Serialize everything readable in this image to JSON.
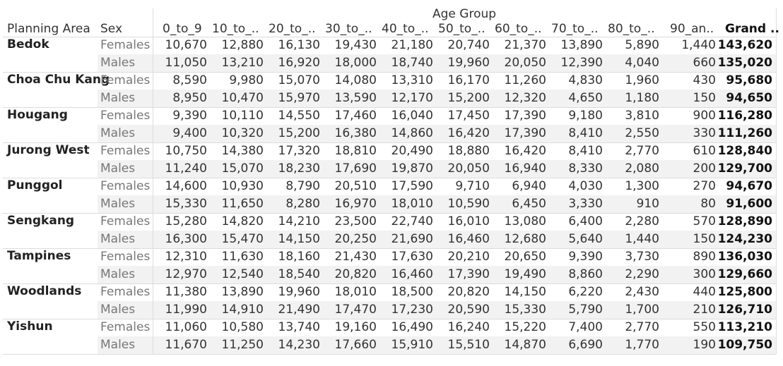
{
  "chart_data": {
    "type": "table",
    "column_group_label": "Age Group",
    "row_headers": [
      "Planning Area",
      "Sex"
    ],
    "columns": [
      "0_to_9",
      "10_to_..",
      "20_to_..",
      "30_to_..",
      "40_to_..",
      "50_to_..",
      "60_to_..",
      "70_to_..",
      "80_to_..",
      "90_an..",
      "Grand .."
    ],
    "rows": [
      {
        "area": "Bedok",
        "groups": [
          {
            "sex": "Females",
            "values": [
              "10,670",
              "12,880",
              "16,130",
              "19,430",
              "21,180",
              "20,740",
              "21,370",
              "13,890",
              "5,890",
              "1,440",
              "143,620"
            ]
          },
          {
            "sex": "Males",
            "values": [
              "11,050",
              "13,210",
              "16,920",
              "18,000",
              "18,740",
              "19,960",
              "20,050",
              "12,390",
              "4,040",
              "660",
              "135,020"
            ]
          }
        ]
      },
      {
        "area": "Choa Chu Kang",
        "groups": [
          {
            "sex": "Females",
            "values": [
              "8,590",
              "9,980",
              "15,070",
              "14,080",
              "13,310",
              "16,170",
              "11,260",
              "4,830",
              "1,960",
              "430",
              "95,680"
            ]
          },
          {
            "sex": "Males",
            "values": [
              "8,950",
              "10,470",
              "15,970",
              "13,590",
              "12,170",
              "15,200",
              "12,320",
              "4,650",
              "1,180",
              "150",
              "94,650"
            ]
          }
        ]
      },
      {
        "area": "Hougang",
        "groups": [
          {
            "sex": "Females",
            "values": [
              "9,390",
              "10,110",
              "14,550",
              "17,460",
              "16,040",
              "17,450",
              "17,390",
              "9,180",
              "3,810",
              "900",
              "116,280"
            ]
          },
          {
            "sex": "Males",
            "values": [
              "9,400",
              "10,320",
              "15,200",
              "16,380",
              "14,860",
              "16,420",
              "17,390",
              "8,410",
              "2,550",
              "330",
              "111,260"
            ]
          }
        ]
      },
      {
        "area": "Jurong West",
        "groups": [
          {
            "sex": "Females",
            "values": [
              "10,750",
              "14,380",
              "17,320",
              "18,810",
              "20,490",
              "18,880",
              "16,420",
              "8,410",
              "2,770",
              "610",
              "128,840"
            ]
          },
          {
            "sex": "Males",
            "values": [
              "11,240",
              "15,070",
              "18,230",
              "17,690",
              "19,870",
              "20,050",
              "16,940",
              "8,330",
              "2,080",
              "200",
              "129,700"
            ]
          }
        ]
      },
      {
        "area": "Punggol",
        "groups": [
          {
            "sex": "Females",
            "values": [
              "14,600",
              "10,930",
              "8,790",
              "20,510",
              "17,590",
              "9,710",
              "6,940",
              "4,030",
              "1,300",
              "270",
              "94,670"
            ]
          },
          {
            "sex": "Males",
            "values": [
              "15,330",
              "11,650",
              "8,280",
              "16,970",
              "18,010",
              "10,590",
              "6,450",
              "3,330",
              "910",
              "80",
              "91,600"
            ]
          }
        ]
      },
      {
        "area": "Sengkang",
        "groups": [
          {
            "sex": "Females",
            "values": [
              "15,280",
              "14,820",
              "14,210",
              "23,500",
              "22,740",
              "16,010",
              "13,080",
              "6,400",
              "2,280",
              "570",
              "128,890"
            ]
          },
          {
            "sex": "Males",
            "values": [
              "16,300",
              "15,470",
              "14,150",
              "20,250",
              "21,690",
              "16,460",
              "12,680",
              "5,640",
              "1,440",
              "150",
              "124,230"
            ]
          }
        ]
      },
      {
        "area": "Tampines",
        "groups": [
          {
            "sex": "Females",
            "values": [
              "12,310",
              "11,630",
              "18,160",
              "21,430",
              "17,630",
              "20,210",
              "20,650",
              "9,390",
              "3,730",
              "890",
              "136,030"
            ]
          },
          {
            "sex": "Males",
            "values": [
              "12,970",
              "12,540",
              "18,540",
              "20,820",
              "16,460",
              "17,390",
              "19,490",
              "8,860",
              "2,290",
              "300",
              "129,660"
            ]
          }
        ]
      },
      {
        "area": "Woodlands",
        "groups": [
          {
            "sex": "Females",
            "values": [
              "11,380",
              "13,890",
              "19,960",
              "18,010",
              "18,500",
              "20,820",
              "14,150",
              "6,220",
              "2,430",
              "440",
              "125,800"
            ]
          },
          {
            "sex": "Males",
            "values": [
              "11,990",
              "14,910",
              "21,490",
              "17,470",
              "17,230",
              "20,590",
              "15,330",
              "5,790",
              "1,700",
              "210",
              "126,710"
            ]
          }
        ]
      },
      {
        "area": "Yishun",
        "groups": [
          {
            "sex": "Females",
            "values": [
              "11,060",
              "10,580",
              "13,740",
              "19,160",
              "16,490",
              "16,240",
              "15,220",
              "7,400",
              "2,770",
              "550",
              "113,210"
            ]
          },
          {
            "sex": "Males",
            "values": [
              "11,670",
              "11,250",
              "14,230",
              "17,660",
              "15,910",
              "15,510",
              "14,870",
              "6,690",
              "1,770",
              "190",
              "109,750"
            ]
          }
        ]
      }
    ]
  }
}
